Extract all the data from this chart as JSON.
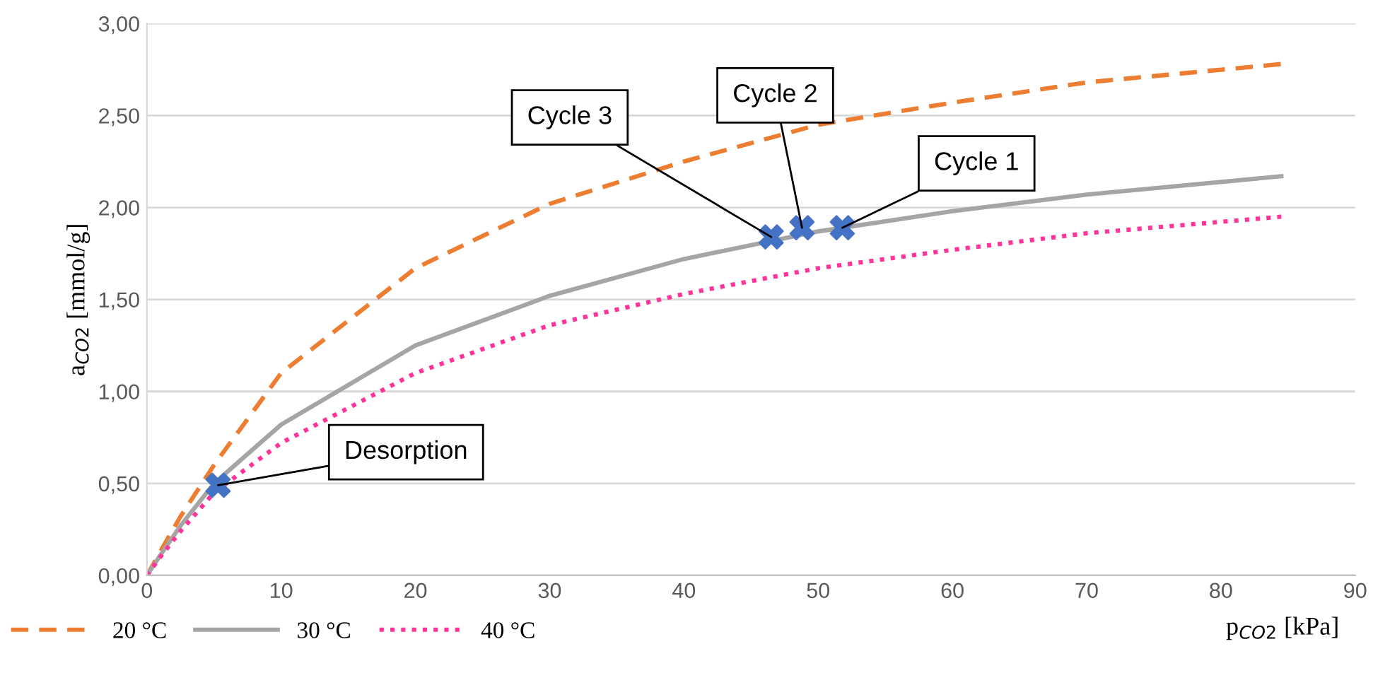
{
  "chart_data": {
    "type": "line",
    "xlabel": "p$_{CO2}$ [kPa]",
    "ylabel": "a$_{CO2}$ [mmol/g]",
    "xlim": [
      0,
      90
    ],
    "ylim": [
      0,
      3
    ],
    "xticks": [
      0,
      10,
      20,
      30,
      40,
      50,
      60,
      70,
      80,
      90
    ],
    "yticks": [
      {
        "value": 0,
        "label": "0,00"
      },
      {
        "value": 0.5,
        "label": "0,50"
      },
      {
        "value": 1,
        "label": "1,00"
      },
      {
        "value": 1.5,
        "label": "1,50"
      },
      {
        "value": 2,
        "label": "2,00"
      },
      {
        "value": 2.5,
        "label": "2,50"
      },
      {
        "value": 3,
        "label": "3,00"
      }
    ],
    "grid": "y",
    "legend": "bottom left",
    "marker": "none",
    "series": [
      {
        "name": "20 °C",
        "color": "#ed7d31",
        "line_style": "dashed",
        "x": [
          0,
          1,
          2.5,
          5,
          10,
          20,
          30,
          40,
          50,
          60,
          70,
          84.5
        ],
        "values": [
          0,
          0.13,
          0.32,
          0.6,
          1.1,
          1.67,
          2.02,
          2.25,
          2.45,
          2.57,
          2.68,
          2.78
        ]
      },
      {
        "name": "30 °C",
        "color": "#a5a5a5",
        "line_style": "solid",
        "x": [
          0,
          1,
          2.5,
          5,
          10,
          20,
          30,
          40,
          50,
          60,
          70,
          84.5
        ],
        "values": [
          0,
          0.11,
          0.27,
          0.5,
          0.82,
          1.25,
          1.52,
          1.72,
          1.87,
          1.98,
          2.07,
          2.17
        ]
      },
      {
        "name": "40 °C",
        "color": "#ff3399",
        "line_style": "dotted",
        "x": [
          0,
          1,
          2.5,
          5,
          10,
          20,
          30,
          40,
          50,
          60,
          70,
          84.5
        ],
        "values": [
          0,
          0.1,
          0.24,
          0.45,
          0.72,
          1.1,
          1.36,
          1.53,
          1.67,
          1.77,
          1.86,
          1.95
        ]
      },
      {
        "type": "scatter",
        "marker": "cross",
        "color": "#4472c4",
        "x": [
          5.3,
          46.5,
          48.8,
          51.8
        ],
        "values": [
          0.49,
          1.84,
          1.89,
          1.89
        ]
      }
    ],
    "annotations": [
      {
        "text": "Desorption",
        "x": 5.3,
        "y": 0.49
      },
      {
        "text": "Cycle 3",
        "x": 46.5,
        "y": 1.84
      },
      {
        "text": "Cycle 2",
        "x": 48.8,
        "y": 1.89
      },
      {
        "text": "Cycle 1",
        "x": 51.8,
        "y": 1.89
      }
    ]
  }
}
